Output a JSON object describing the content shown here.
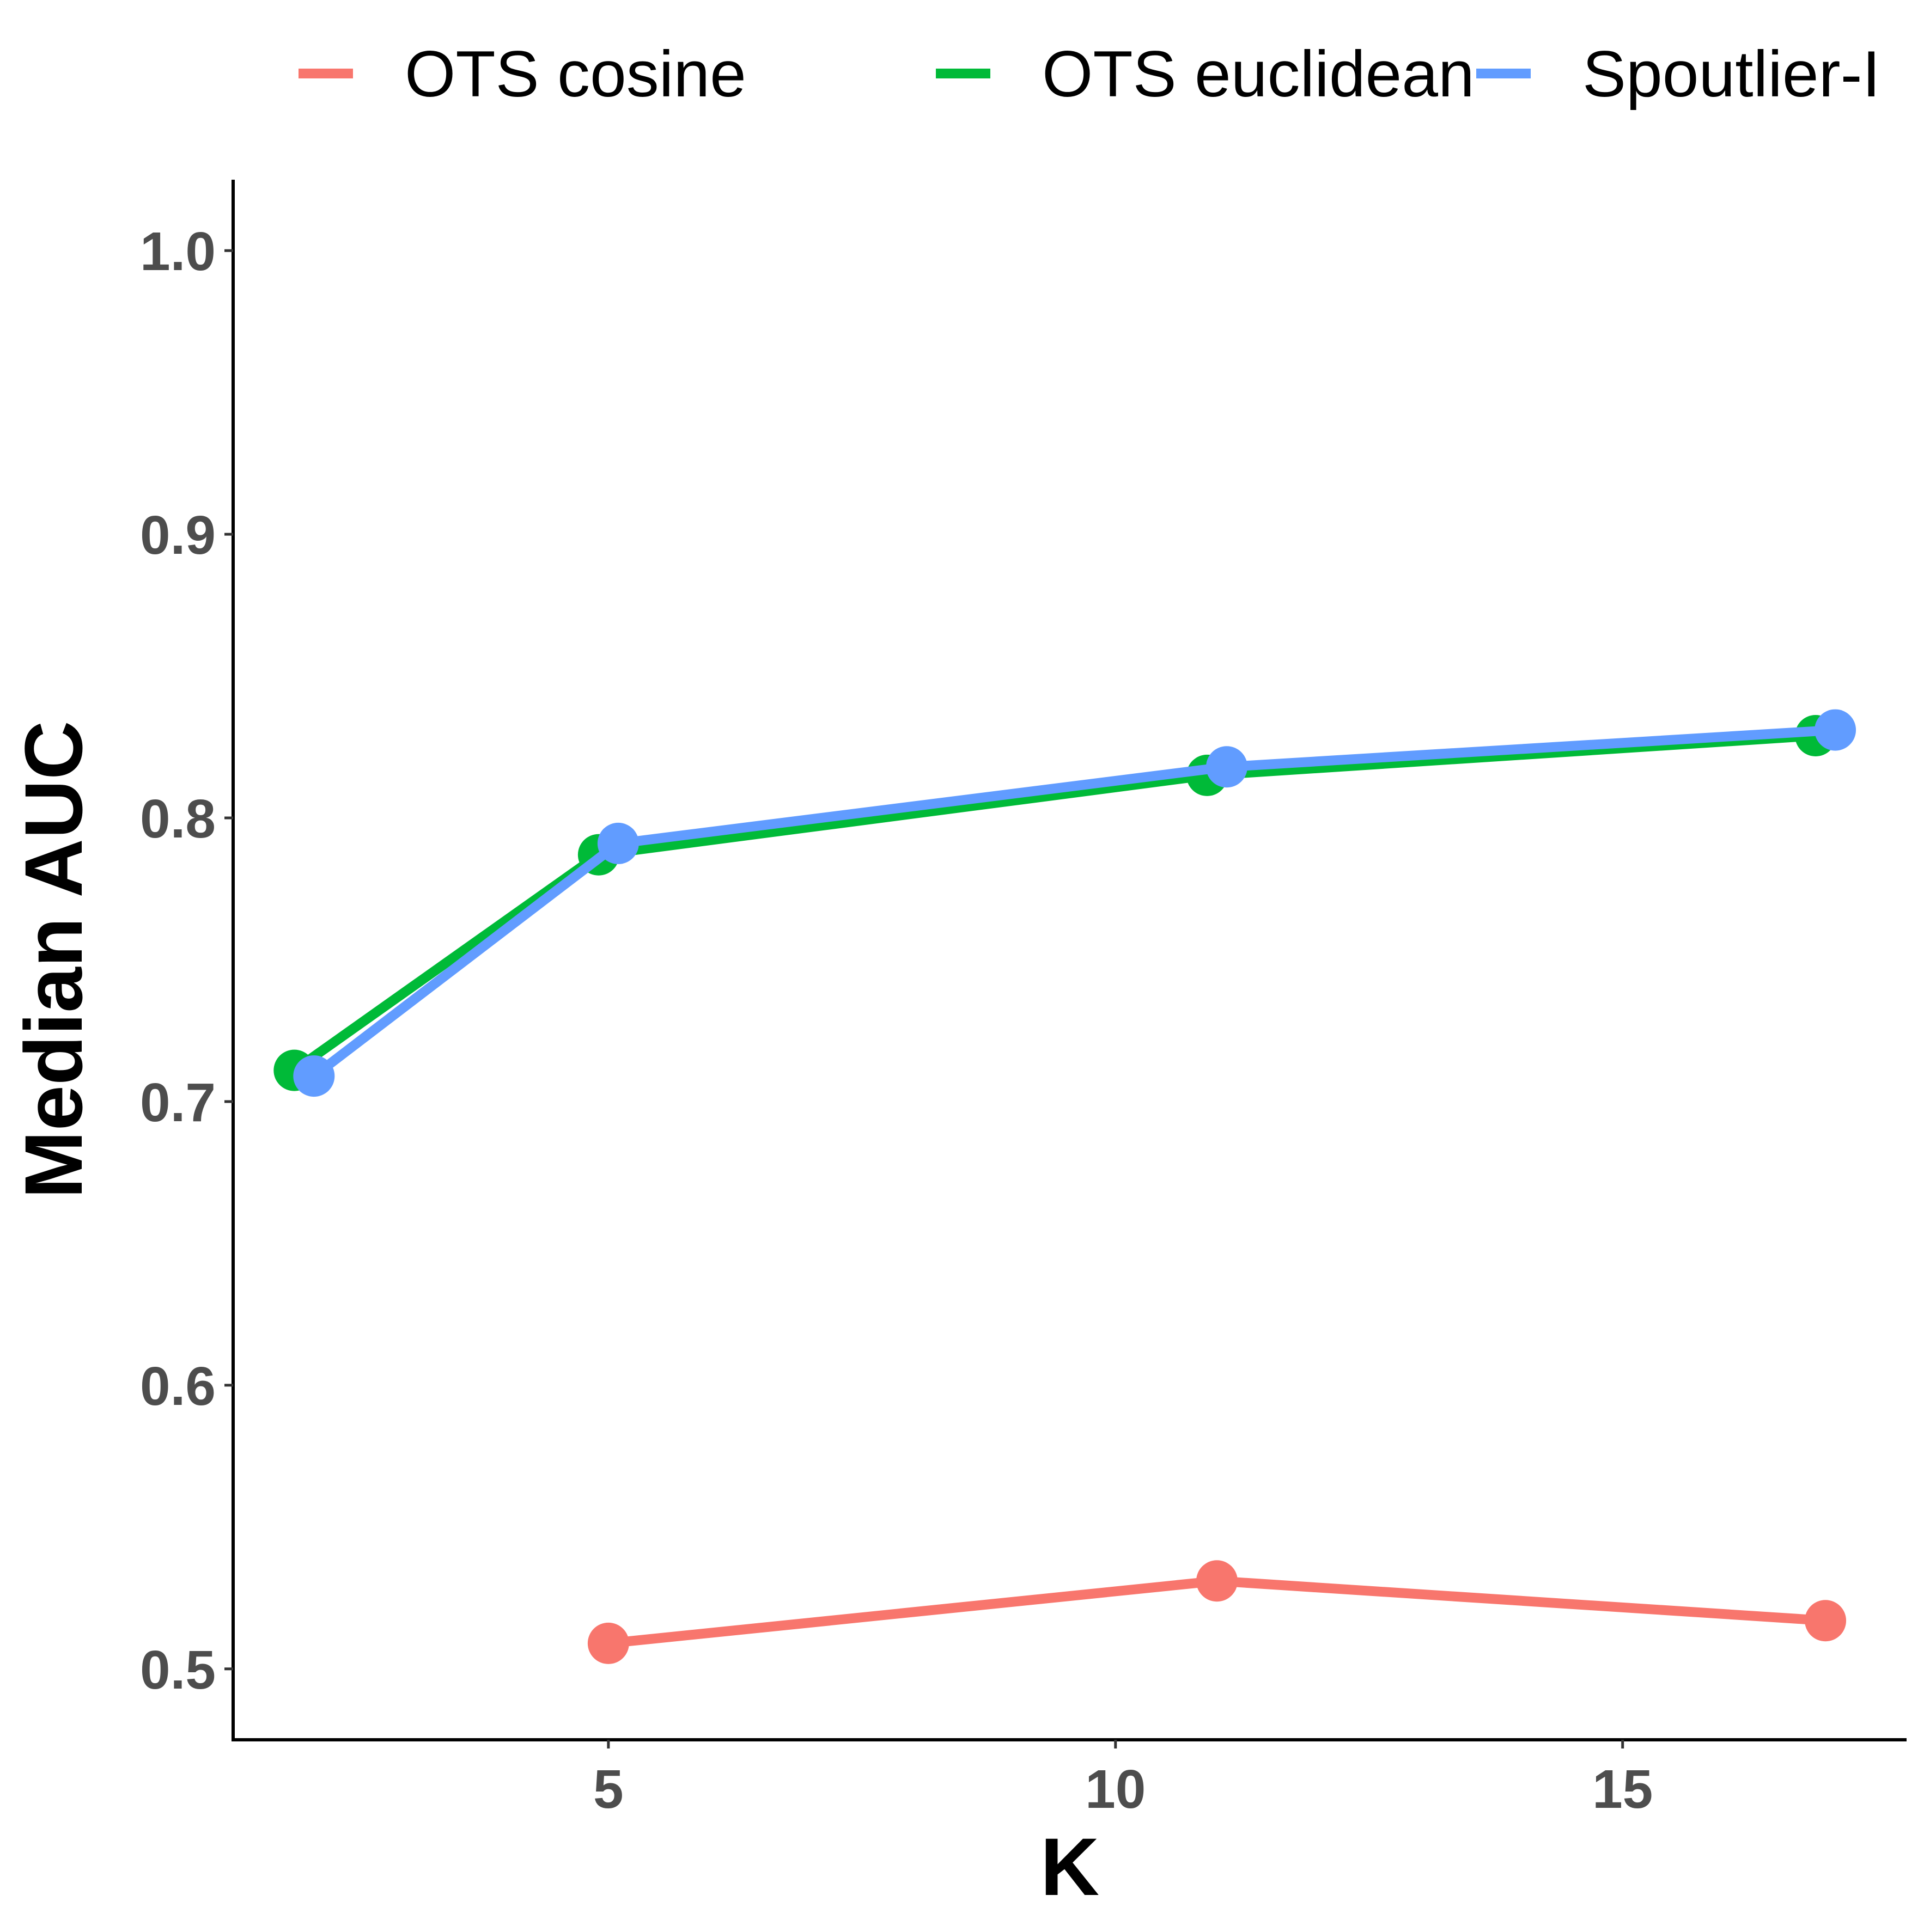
{
  "chart_data": {
    "type": "line",
    "xlabel": "K",
    "ylabel": "Median AUC",
    "xlim": [
      1.3,
      17.8
    ],
    "ylim": [
      0.475,
      1.025
    ],
    "x_ticks": [
      5,
      10,
      15
    ],
    "y_ticks": [
      0.5,
      0.6,
      0.7,
      0.8,
      0.9,
      1.0
    ],
    "x_tick_labels": [
      "5",
      "10",
      "15"
    ],
    "y_tick_labels": [
      "0.5",
      "0.6",
      "0.7",
      "0.8",
      "0.9",
      "1.0"
    ],
    "grid": false,
    "legend_position": "top",
    "series": [
      {
        "name": "OTS cosine",
        "color": "#F8766D",
        "x": [
          5,
          11,
          17
        ],
        "y": [
          0.509,
          0.531,
          0.517
        ]
      },
      {
        "name": "OTS euclidean",
        "color": "#00BA38",
        "x": [
          2,
          5,
          11,
          17
        ],
        "y": [
          0.711,
          0.787,
          0.815,
          0.829
        ]
      },
      {
        "name": "Spoutlier-I",
        "color": "#619CFF",
        "x": [
          2,
          5,
          11,
          17
        ],
        "y": [
          0.709,
          0.791,
          0.818,
          0.831
        ]
      }
    ]
  }
}
